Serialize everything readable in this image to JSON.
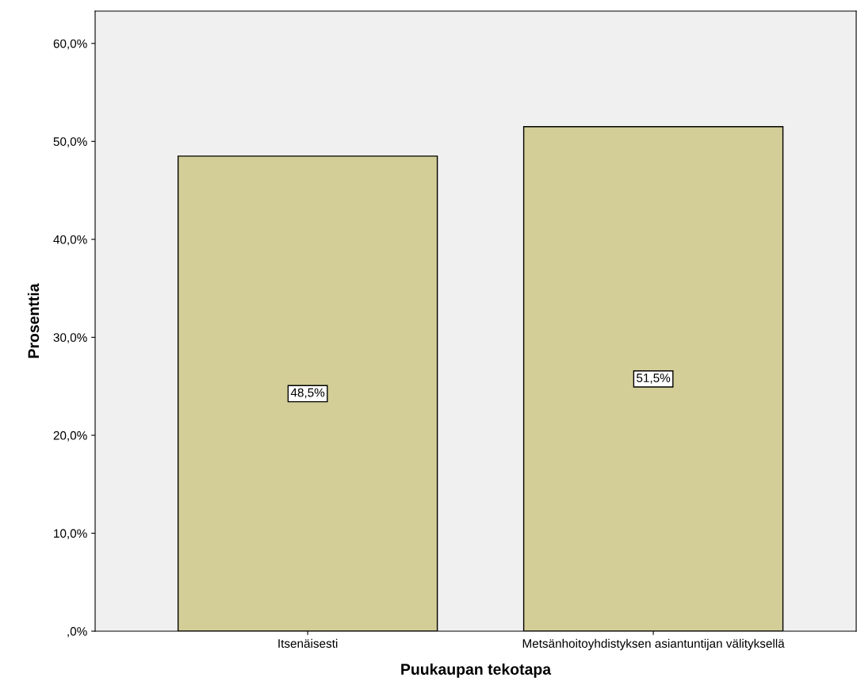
{
  "chart_data": {
    "type": "bar",
    "xlabel": "Puukaupan tekotapa",
    "ylabel": "Prosenttia",
    "categories": [
      "Itsenäisesti",
      "Metsänhoitoyhdistyksen asiantuntijan välityksellä"
    ],
    "values": [
      48.5,
      51.5
    ],
    "color": "#d3ce97",
    "value_labels": [
      "48,5%",
      "51,5%"
    ],
    "ylim": [
      0,
      63.3
    ],
    "yticks": [
      {
        "value": 0,
        "label": ",0%"
      },
      {
        "value": 10,
        "label": "10,0%"
      },
      {
        "value": 20,
        "label": "20,0%"
      },
      {
        "value": 30,
        "label": "30,0%"
      },
      {
        "value": 40,
        "label": "40,0%"
      },
      {
        "value": 50,
        "label": "50,0%"
      },
      {
        "value": 60,
        "label": "60,0%"
      }
    ],
    "grid": false,
    "legend": false
  }
}
